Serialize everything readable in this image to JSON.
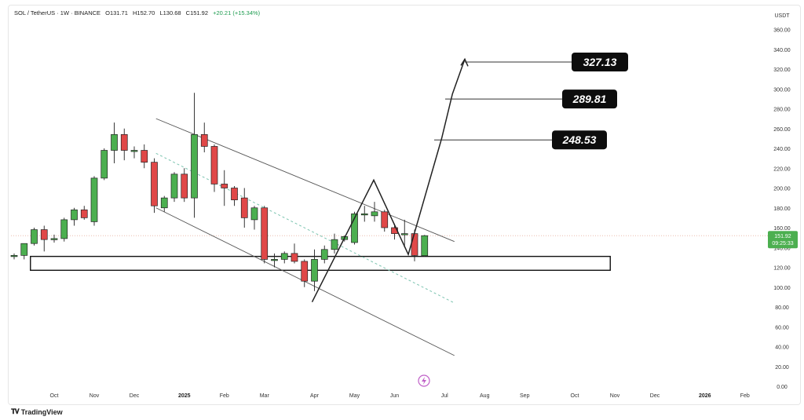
{
  "header": {
    "symbol": "SOL / TetherUS · 1W · BINANCE",
    "open": "O131.71",
    "high": "H152.70",
    "low": "L130.68",
    "close": "C151.92",
    "change": "+20.21 (+15.34%)"
  },
  "price_label": {
    "price": "151.92",
    "countdown": "09:25:33"
  },
  "brand": "TradingView",
  "chart_data": {
    "type": "candlestick",
    "currency": "USDT",
    "ylim": [
      0,
      360
    ],
    "yticks": [
      0,
      20,
      40,
      60,
      80,
      100,
      120,
      140,
      160,
      180,
      200,
      220,
      240,
      260,
      280,
      300,
      320,
      340,
      360
    ],
    "ytick_labels": [
      "0.00",
      "20.00",
      "40.00",
      "60.00",
      "80.00",
      "100.00",
      "120.00",
      "140.00",
      "160.00",
      "180.00",
      "200.00",
      "220.00",
      "240.00",
      "260.00",
      "280.00",
      "300.00",
      "320.00",
      "340.00",
      "360.00"
    ],
    "x_axis_labels": [
      {
        "label": "Oct",
        "week": 4
      },
      {
        "label": "Nov",
        "week": 8
      },
      {
        "label": "Dec",
        "week": 12
      },
      {
        "label": "2025",
        "week": 17,
        "bold": true
      },
      {
        "label": "Feb",
        "week": 21
      },
      {
        "label": "Mar",
        "week": 25
      },
      {
        "label": "Apr",
        "week": 30
      },
      {
        "label": "May",
        "week": 34
      },
      {
        "label": "Jun",
        "week": 38
      },
      {
        "label": "Jul",
        "week": 43
      },
      {
        "label": "Aug",
        "week": 47
      },
      {
        "label": "Sep",
        "week": 51
      },
      {
        "label": "Oct",
        "week": 56
      },
      {
        "label": "Nov",
        "week": 60
      },
      {
        "label": "Dec",
        "week": 64
      },
      {
        "label": "2026",
        "week": 69,
        "bold": true
      },
      {
        "label": "Feb",
        "week": 73
      }
    ],
    "candles": [
      {
        "w": 0,
        "o": 131,
        "h": 134,
        "l": 128,
        "c": 132
      },
      {
        "w": 1,
        "o": 132,
        "h": 144,
        "l": 128,
        "c": 144
      },
      {
        "w": 2,
        "o": 144,
        "h": 160,
        "l": 142,
        "c": 158
      },
      {
        "w": 3,
        "o": 158,
        "h": 162,
        "l": 136,
        "c": 148
      },
      {
        "w": 4,
        "o": 148,
        "h": 153,
        "l": 145,
        "c": 149
      },
      {
        "w": 5,
        "o": 149,
        "h": 170,
        "l": 146,
        "c": 168
      },
      {
        "w": 6,
        "o": 168,
        "h": 180,
        "l": 162,
        "c": 178
      },
      {
        "w": 7,
        "o": 178,
        "h": 182,
        "l": 168,
        "c": 170
      },
      {
        "w": 8,
        "o": 166,
        "h": 212,
        "l": 162,
        "c": 210
      },
      {
        "w": 9,
        "o": 210,
        "h": 240,
        "l": 208,
        "c": 238
      },
      {
        "w": 10,
        "o": 238,
        "h": 266,
        "l": 225,
        "c": 254
      },
      {
        "w": 11,
        "o": 254,
        "h": 260,
        "l": 228,
        "c": 238
      },
      {
        "w": 12,
        "o": 238,
        "h": 242,
        "l": 230,
        "c": 238
      },
      {
        "w": 13,
        "o": 238,
        "h": 244,
        "l": 220,
        "c": 226
      },
      {
        "w": 14,
        "o": 226,
        "h": 230,
        "l": 175,
        "c": 182
      },
      {
        "w": 15,
        "o": 180,
        "h": 192,
        "l": 176,
        "c": 190
      },
      {
        "w": 16,
        "o": 190,
        "h": 216,
        "l": 186,
        "c": 214
      },
      {
        "w": 17,
        "o": 214,
        "h": 220,
        "l": 186,
        "c": 190
      },
      {
        "w": 18,
        "o": 190,
        "h": 296,
        "l": 170,
        "c": 254
      },
      {
        "w": 19,
        "o": 254,
        "h": 266,
        "l": 236,
        "c": 242
      },
      {
        "w": 20,
        "o": 242,
        "h": 244,
        "l": 196,
        "c": 204
      },
      {
        "w": 21,
        "o": 204,
        "h": 218,
        "l": 182,
        "c": 200
      },
      {
        "w": 22,
        "o": 200,
        "h": 202,
        "l": 182,
        "c": 188
      },
      {
        "w": 23,
        "o": 190,
        "h": 200,
        "l": 160,
        "c": 170
      },
      {
        "w": 24,
        "o": 168,
        "h": 182,
        "l": 158,
        "c": 180
      },
      {
        "w": 25,
        "o": 180,
        "h": 182,
        "l": 124,
        "c": 128
      },
      {
        "w": 26,
        "o": 128,
        "h": 134,
        "l": 120,
        "c": 128
      },
      {
        "w": 27,
        "o": 128,
        "h": 136,
        "l": 124,
        "c": 134
      },
      {
        "w": 28,
        "o": 134,
        "h": 144,
        "l": 124,
        "c": 126
      },
      {
        "w": 29,
        "o": 126,
        "h": 128,
        "l": 100,
        "c": 106
      },
      {
        "w": 30,
        "o": 106,
        "h": 138,
        "l": 96,
        "c": 128
      },
      {
        "w": 31,
        "o": 128,
        "h": 142,
        "l": 124,
        "c": 138
      },
      {
        "w": 32,
        "o": 138,
        "h": 154,
        "l": 134,
        "c": 148
      },
      {
        "w": 33,
        "o": 148,
        "h": 152,
        "l": 146,
        "c": 151
      },
      {
        "w": 34,
        "o": 145,
        "h": 176,
        "l": 143,
        "c": 174
      },
      {
        "w": 35,
        "o": 174,
        "h": 182,
        "l": 166,
        "c": 174
      },
      {
        "w": 36,
        "o": 172,
        "h": 186,
        "l": 166,
        "c": 176
      },
      {
        "w": 37,
        "o": 176,
        "h": 178,
        "l": 156,
        "c": 160
      },
      {
        "w": 38,
        "o": 160,
        "h": 164,
        "l": 148,
        "c": 154
      },
      {
        "w": 39,
        "o": 154,
        "h": 168,
        "l": 140,
        "c": 154
      },
      {
        "w": 40,
        "o": 154,
        "h": 158,
        "l": 126,
        "c": 132
      },
      {
        "w": 41,
        "o": 131.71,
        "h": 152.7,
        "l": 130.68,
        "c": 151.92
      }
    ],
    "support_zone": {
      "from_week": 1,
      "to_week": 59,
      "low": 117,
      "high": 131
    },
    "descending_channel": {
      "upper": [
        {
          "w": 13,
          "p": 270
        },
        {
          "w": 45,
          "p": 146
        }
      ],
      "lower": [
        {
          "w": 13,
          "p": 180
        },
        {
          "w": 45,
          "p": 31
        }
      ]
    },
    "dashed_midline": [
      {
        "w": 13,
        "p": 235
      },
      {
        "w": 45,
        "p": 84
      }
    ],
    "projection_path": [
      {
        "w": 30,
        "p": 85
      },
      {
        "w": 36,
        "p": 208
      },
      {
        "w": 40,
        "p": 133
      },
      {
        "w": 42,
        "p": 250
      },
      {
        "w": 43,
        "p": 295
      },
      {
        "w": 44,
        "p": 330
      }
    ],
    "targets": [
      {
        "value": 327.13,
        "label": "327.13"
      },
      {
        "value": 289.81,
        "label": "289.81"
      },
      {
        "value": 248.53,
        "label": "248.53"
      }
    ],
    "colors": {
      "up": "#4caf50",
      "down": "#e04848",
      "line": "#222222",
      "zone": "#111111",
      "midline": "#7cc4b0",
      "current_price": "#4caf50"
    }
  }
}
